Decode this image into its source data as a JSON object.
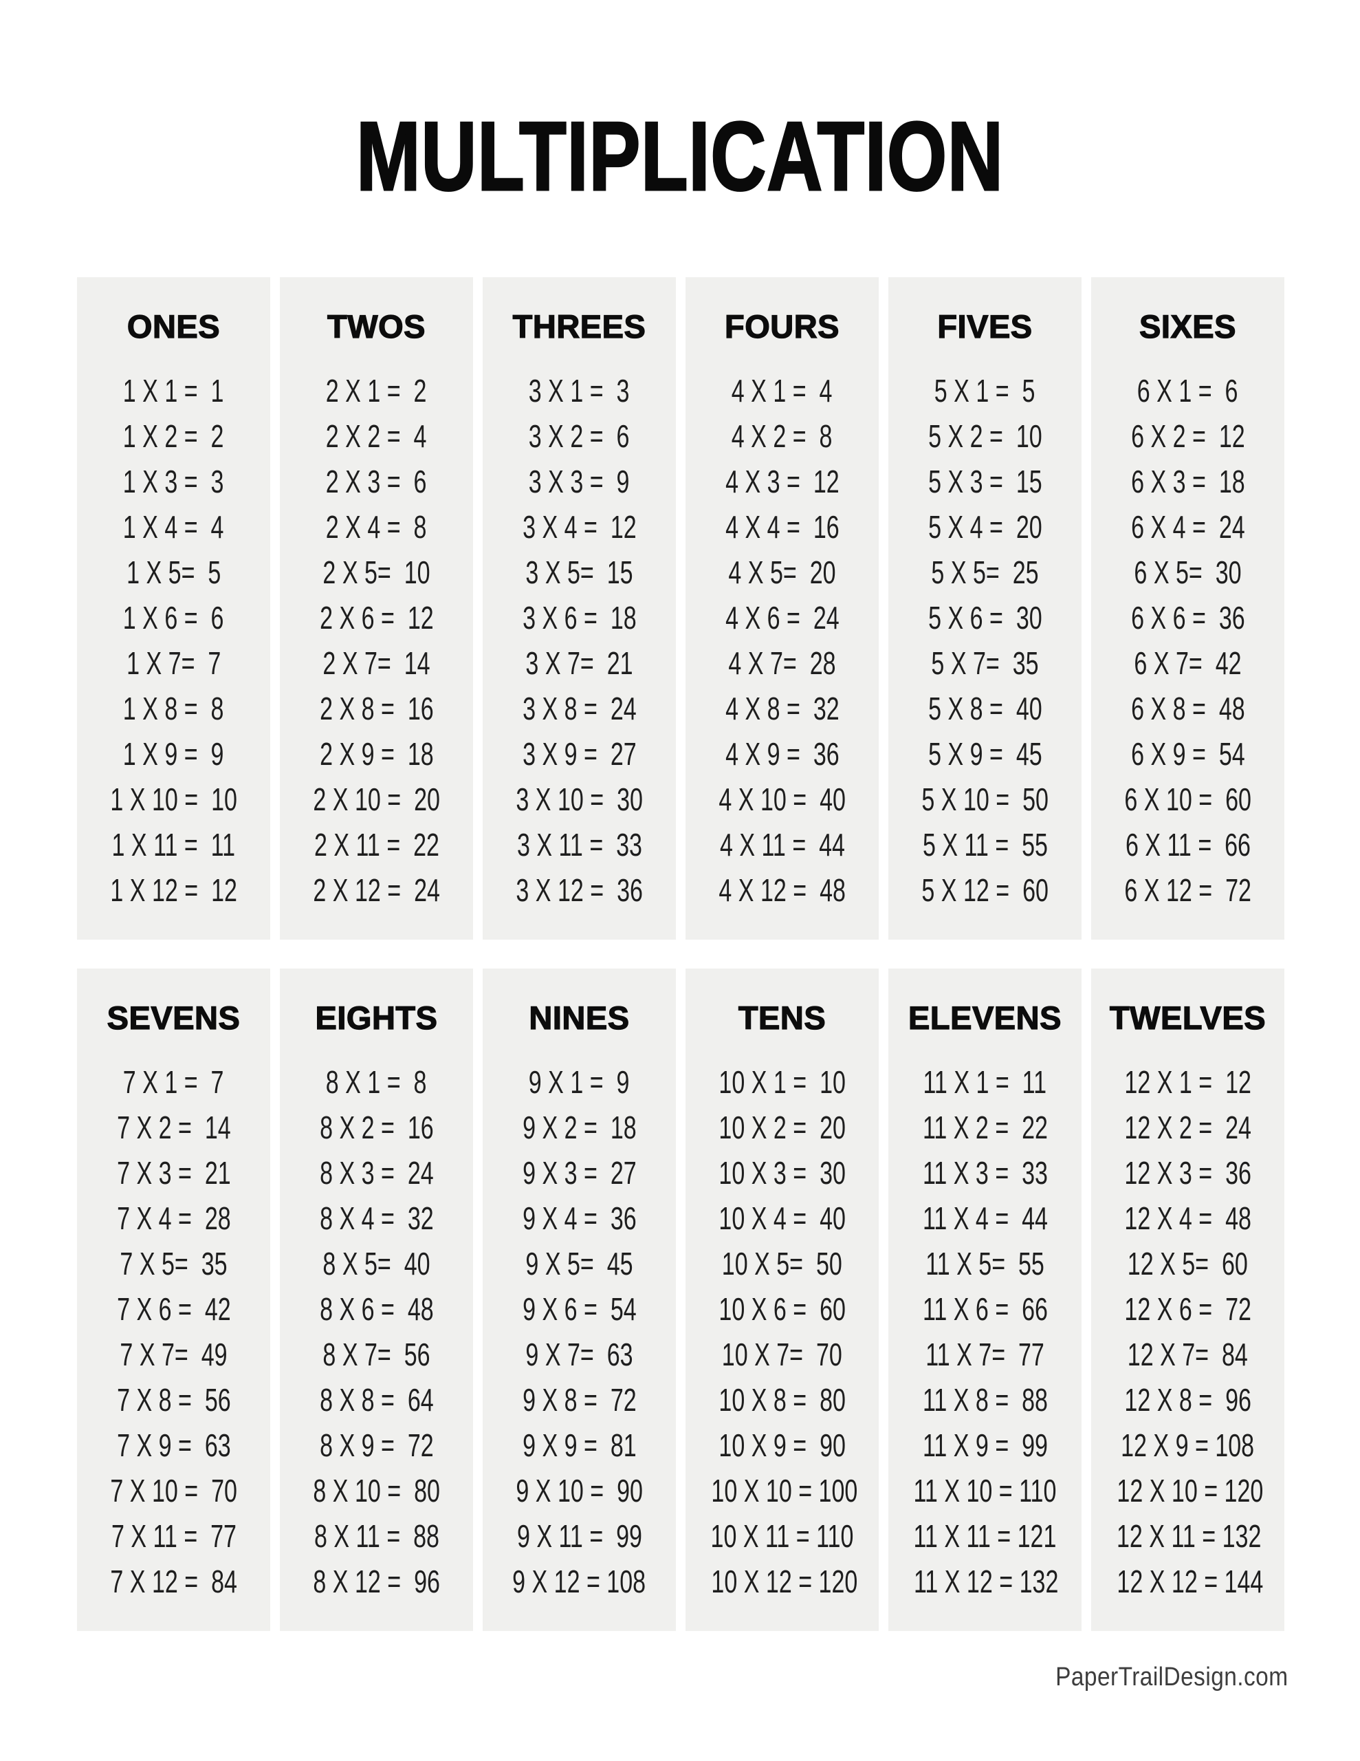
{
  "page": {
    "title": "MULTIPLICATION",
    "footer": "PaperTrailDesign.com",
    "background_color": "#ffffff",
    "panel_bg": "#f0f0ee",
    "title_color": "#0a0a0a",
    "text_color": "#1e1e1e"
  },
  "tables": [
    {
      "label": "ONES",
      "equations": [
        "1 X 1 =  1",
        "1 X 2 =  2",
        "1 X 3 =  3",
        "1 X 4 =  4",
        "1 X 5=  5",
        "1 X 6 =  6",
        "1 X 7=  7",
        "1 X 8 =  8",
        "1 X 9 =  9",
        "1 X 10 =  10",
        "1 X 11 =  11",
        "1 X 12 =  12"
      ]
    },
    {
      "label": "TWOS",
      "equations": [
        "2 X 1 =  2",
        "2 X 2 =  4",
        "2 X 3 =  6",
        "2 X 4 =  8",
        "2 X 5=  10",
        "2 X 6 =  12",
        "2 X 7=  14",
        "2 X 8 =  16",
        "2 X 9 =  18",
        "2 X 10 =  20",
        "2 X 11 =  22",
        "2 X 12 =  24"
      ]
    },
    {
      "label": "THREES",
      "equations": [
        "3 X 1 =  3",
        "3 X 2 =  6",
        "3 X 3 =  9",
        "3 X 4 =  12",
        "3 X 5=  15",
        "3 X 6 =  18",
        "3 X 7=  21",
        "3 X 8 =  24",
        "3 X 9 =  27",
        "3 X 10 =  30",
        "3 X 11 =  33",
        "3 X 12 =  36"
      ]
    },
    {
      "label": "FOURS",
      "equations": [
        "4 X 1 =  4",
        "4 X 2 =  8",
        "4 X 3 =  12",
        "4 X 4 =  16",
        "4 X 5=  20",
        "4 X 6 =  24",
        "4 X 7=  28",
        "4 X 8 =  32",
        "4 X 9 =  36",
        "4 X 10 =  40",
        "4 X 11 =  44",
        "4 X 12 =  48"
      ]
    },
    {
      "label": "FIVES",
      "equations": [
        "5 X 1 =  5",
        "5 X 2 =  10",
        "5 X 3 =  15",
        "5 X 4 =  20",
        "5 X 5=  25",
        "5 X 6 =  30",
        "5 X 7=  35",
        "5 X 8 =  40",
        "5 X 9 =  45",
        "5 X 10 =  50",
        "5 X 11 =  55",
        "5 X 12 =  60"
      ]
    },
    {
      "label": "SIXES",
      "equations": [
        "6 X 1 =  6",
        "6 X 2 =  12",
        "6 X 3 =  18",
        "6 X 4 =  24",
        "6 X 5=  30",
        "6 X 6 =  36",
        "6 X 7=  42",
        "6 X 8 =  48",
        "6 X 9 =  54",
        "6 X 10 =  60",
        "6 X 11 =  66",
        "6 X 12 =  72"
      ]
    },
    {
      "label": "SEVENS",
      "equations": [
        "7 X 1 =  7",
        "7 X 2 =  14",
        "7 X 3 =  21",
        "7 X 4 =  28",
        "7 X 5=  35",
        "7 X 6 =  42",
        "7 X 7=  49",
        "7 X 8 =  56",
        "7 X 9 =  63",
        "7 X 10 =  70",
        "7 X 11 =  77",
        "7 X 12 =  84"
      ]
    },
    {
      "label": "EIGHTS",
      "equations": [
        "8 X 1 =  8",
        "8 X 2 =  16",
        "8 X 3 =  24",
        "8 X 4 =  32",
        "8 X 5=  40",
        "8 X 6 =  48",
        "8 X 7=  56",
        "8 X 8 =  64",
        "8 X 9 =  72",
        "8 X 10 =  80",
        "8 X 11 =  88",
        "8 X 12 =  96"
      ]
    },
    {
      "label": "NINES",
      "equations": [
        "9 X 1 =  9",
        "9 X 2 =  18",
        "9 X 3 =  27",
        "9 X 4 =  36",
        "9 X 5=  45",
        "9 X 6 =  54",
        "9 X 7=  63",
        "9 X 8 =  72",
        "9 X 9 =  81",
        "9 X 10 =  90",
        "9 X 11 =  99",
        "9 X 12 = 108"
      ]
    },
    {
      "label": "TENS",
      "equations": [
        "10 X 1 =  10",
        "10 X 2 =  20",
        "10 X 3 =  30",
        "10 X 4 =  40",
        "10 X 5=  50",
        "10 X 6 =  60",
        "10 X 7=  70",
        "10 X 8 =  80",
        "10 X 9 =  90",
        "10 X 10 = 100",
        "10 X 11 = 110",
        "10 X 12 = 120"
      ]
    },
    {
      "label": "ELEVENS",
      "equations": [
        "11 X 1 =  11",
        "11 X 2 =  22",
        "11 X 3 =  33",
        "11 X 4 =  44",
        "11 X 5=  55",
        "11 X 6 =  66",
        "11 X 7=  77",
        "11 X 8 =  88",
        "11 X 9 =  99",
        "11 X 10 = 110",
        "11 X 11 = 121",
        "11 X 12 = 132"
      ]
    },
    {
      "label": "TWELVES",
      "equations": [
        "12 X 1 =  12",
        "12 X 2 =  24",
        "12 X 3 =  36",
        "12 X 4 =  48",
        "12 X 5=  60",
        "12 X 6 =  72",
        "12 X 7=  84",
        "12 X 8 =  96",
        "12 X 9 = 108",
        "12 X 10 = 120",
        "12 X 11 = 132",
        "12 X 12 = 144"
      ]
    }
  ]
}
